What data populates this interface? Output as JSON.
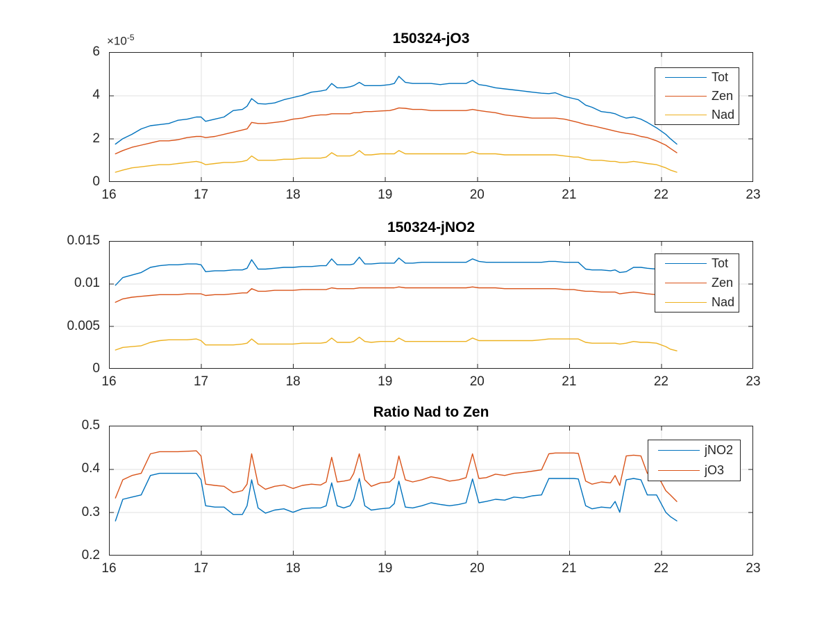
{
  "figure": {
    "background_color": "#ffffff",
    "axis_color": "#262626",
    "grid_color": "#e0e0e0",
    "tick_label_color": "#262626",
    "title_color": "#000000"
  },
  "chart_data": [
    {
      "id": "jo3",
      "type": "line",
      "title": "150324-jO3",
      "grid": true,
      "legend_location": "northeast",
      "y_offset": {
        "base": "×10",
        "exp": "-5"
      },
      "y_unit_note": "y values are in units of 1e-5 (axis offset label ×10^-5)",
      "xlim": [
        16,
        23
      ],
      "ylim": [
        0,
        6
      ],
      "x_tick_values": [
        16,
        17,
        18,
        19,
        20,
        21,
        22,
        23
      ],
      "x_tick_labels": [
        "16",
        "17",
        "18",
        "19",
        "20",
        "21",
        "22",
        "23"
      ],
      "y_tick_values": [
        0,
        2,
        4,
        6
      ],
      "y_tick_labels": [
        "0",
        "2",
        "4",
        "6"
      ],
      "x": [
        16.07,
        16.15,
        16.25,
        16.35,
        16.45,
        16.55,
        16.65,
        16.75,
        16.85,
        16.95,
        17.0,
        17.05,
        17.15,
        17.25,
        17.35,
        17.45,
        17.5,
        17.55,
        17.62,
        17.7,
        17.8,
        17.9,
        18.0,
        18.1,
        18.2,
        18.3,
        18.36,
        18.42,
        18.48,
        18.55,
        18.62,
        18.66,
        18.72,
        18.78,
        18.85,
        18.95,
        19.05,
        19.1,
        19.15,
        19.22,
        19.3,
        19.4,
        19.5,
        19.6,
        19.7,
        19.8,
        19.88,
        19.95,
        20.02,
        20.1,
        20.2,
        20.3,
        20.4,
        20.5,
        20.6,
        20.7,
        20.78,
        20.85,
        20.95,
        21.05,
        21.1,
        21.18,
        21.25,
        21.35,
        21.45,
        21.5,
        21.55,
        21.62,
        21.7,
        21.78,
        21.85,
        21.95,
        22.05,
        22.1,
        22.17
      ],
      "series": [
        {
          "name": "Tot",
          "color": "#0072BD",
          "values": [
            1.75,
            2.0,
            2.2,
            2.45,
            2.6,
            2.65,
            2.7,
            2.85,
            2.9,
            3.0,
            3.0,
            2.8,
            2.9,
            3.0,
            3.3,
            3.35,
            3.5,
            3.85,
            3.62,
            3.6,
            3.65,
            3.8,
            3.9,
            4.0,
            4.15,
            4.2,
            4.25,
            4.55,
            4.35,
            4.35,
            4.4,
            4.45,
            4.6,
            4.45,
            4.45,
            4.45,
            4.5,
            4.55,
            4.88,
            4.6,
            4.55,
            4.55,
            4.55,
            4.5,
            4.55,
            4.55,
            4.55,
            4.7,
            4.5,
            4.45,
            4.35,
            4.3,
            4.25,
            4.2,
            4.15,
            4.1,
            4.08,
            4.12,
            3.95,
            3.85,
            3.8,
            3.55,
            3.45,
            3.25,
            3.2,
            3.15,
            3.05,
            2.95,
            3.0,
            2.9,
            2.75,
            2.5,
            2.2,
            2.0,
            1.75
          ]
        },
        {
          "name": "Zen",
          "color": "#D95319",
          "values": [
            1.3,
            1.45,
            1.6,
            1.7,
            1.8,
            1.9,
            1.9,
            1.95,
            2.05,
            2.1,
            2.1,
            2.05,
            2.1,
            2.2,
            2.3,
            2.4,
            2.45,
            2.75,
            2.7,
            2.7,
            2.75,
            2.8,
            2.9,
            2.95,
            3.05,
            3.1,
            3.1,
            3.15,
            3.15,
            3.15,
            3.15,
            3.2,
            3.2,
            3.25,
            3.25,
            3.28,
            3.3,
            3.35,
            3.42,
            3.4,
            3.35,
            3.35,
            3.3,
            3.3,
            3.3,
            3.3,
            3.3,
            3.35,
            3.3,
            3.25,
            3.2,
            3.1,
            3.05,
            3.0,
            2.95,
            2.95,
            2.95,
            2.95,
            2.9,
            2.8,
            2.75,
            2.65,
            2.6,
            2.5,
            2.4,
            2.35,
            2.3,
            2.25,
            2.2,
            2.1,
            2.05,
            1.9,
            1.7,
            1.55,
            1.35
          ]
        },
        {
          "name": "Nad",
          "color": "#EDB120",
          "values": [
            0.45,
            0.55,
            0.65,
            0.7,
            0.75,
            0.8,
            0.8,
            0.85,
            0.9,
            0.95,
            0.9,
            0.8,
            0.85,
            0.9,
            0.9,
            0.95,
            1.0,
            1.2,
            1.0,
            1.0,
            1.0,
            1.05,
            1.05,
            1.1,
            1.1,
            1.1,
            1.15,
            1.35,
            1.2,
            1.2,
            1.2,
            1.25,
            1.45,
            1.25,
            1.25,
            1.3,
            1.3,
            1.3,
            1.45,
            1.3,
            1.3,
            1.3,
            1.3,
            1.3,
            1.3,
            1.3,
            1.3,
            1.4,
            1.3,
            1.3,
            1.3,
            1.25,
            1.25,
            1.25,
            1.25,
            1.25,
            1.25,
            1.25,
            1.2,
            1.15,
            1.15,
            1.05,
            1.0,
            1.0,
            0.95,
            0.95,
            0.9,
            0.9,
            0.95,
            0.9,
            0.85,
            0.8,
            0.65,
            0.55,
            0.45
          ]
        }
      ]
    },
    {
      "id": "jno2",
      "type": "line",
      "title": "150324-jNO2",
      "grid": true,
      "legend_location": "northeast",
      "xlim": [
        16,
        23
      ],
      "ylim": [
        0,
        0.015
      ],
      "x_tick_values": [
        16,
        17,
        18,
        19,
        20,
        21,
        22,
        23
      ],
      "x_tick_labels": [
        "16",
        "17",
        "18",
        "19",
        "20",
        "21",
        "22",
        "23"
      ],
      "y_tick_values": [
        0,
        0.005,
        0.01,
        0.015
      ],
      "y_tick_labels": [
        "0",
        "0.005",
        "0.01",
        "0.015"
      ],
      "x": [
        16.07,
        16.15,
        16.25,
        16.35,
        16.45,
        16.55,
        16.65,
        16.75,
        16.85,
        16.95,
        17.0,
        17.05,
        17.15,
        17.25,
        17.35,
        17.45,
        17.5,
        17.55,
        17.62,
        17.7,
        17.8,
        17.9,
        18.0,
        18.1,
        18.2,
        18.3,
        18.36,
        18.42,
        18.48,
        18.55,
        18.62,
        18.66,
        18.72,
        18.78,
        18.85,
        18.95,
        19.05,
        19.1,
        19.15,
        19.22,
        19.3,
        19.4,
        19.5,
        19.6,
        19.7,
        19.8,
        19.88,
        19.95,
        20.02,
        20.1,
        20.2,
        20.3,
        20.4,
        20.5,
        20.6,
        20.7,
        20.78,
        20.85,
        20.95,
        21.05,
        21.1,
        21.18,
        21.25,
        21.35,
        21.45,
        21.5,
        21.55,
        21.62,
        21.7,
        21.78,
        21.85,
        21.95,
        22.05,
        22.1,
        22.17
      ],
      "series": [
        {
          "name": "Tot",
          "color": "#0072BD",
          "values": [
            0.0098,
            0.0107,
            0.011,
            0.0113,
            0.0119,
            0.0121,
            0.0122,
            0.0122,
            0.0123,
            0.0123,
            0.0122,
            0.0114,
            0.0115,
            0.0115,
            0.0116,
            0.0116,
            0.0118,
            0.0128,
            0.0117,
            0.0117,
            0.0118,
            0.0119,
            0.0119,
            0.012,
            0.012,
            0.0121,
            0.0121,
            0.0129,
            0.0122,
            0.0122,
            0.0122,
            0.0123,
            0.0131,
            0.0123,
            0.0123,
            0.0124,
            0.0124,
            0.0124,
            0.013,
            0.0124,
            0.0124,
            0.0125,
            0.0125,
            0.0125,
            0.0125,
            0.0125,
            0.0125,
            0.0129,
            0.0126,
            0.0125,
            0.0125,
            0.0125,
            0.0125,
            0.0125,
            0.0125,
            0.0125,
            0.0126,
            0.0126,
            0.0125,
            0.0125,
            0.0125,
            0.0117,
            0.0116,
            0.0116,
            0.0115,
            0.0116,
            0.0113,
            0.0114,
            0.0119,
            0.0119,
            0.0118,
            0.0117,
            0.0114,
            0.0113,
            0.0112
          ]
        },
        {
          "name": "Zen",
          "color": "#D95319",
          "values": [
            0.0078,
            0.0082,
            0.0084,
            0.0085,
            0.0086,
            0.0087,
            0.0087,
            0.0087,
            0.0088,
            0.0088,
            0.0088,
            0.0086,
            0.0087,
            0.0087,
            0.0088,
            0.0089,
            0.0089,
            0.0094,
            0.0091,
            0.0091,
            0.0092,
            0.0092,
            0.0092,
            0.0093,
            0.0093,
            0.0093,
            0.0093,
            0.0095,
            0.0094,
            0.0094,
            0.0094,
            0.0094,
            0.0095,
            0.0095,
            0.0095,
            0.0095,
            0.0095,
            0.0095,
            0.0096,
            0.0095,
            0.0095,
            0.0095,
            0.0095,
            0.0095,
            0.0095,
            0.0095,
            0.0095,
            0.0096,
            0.0095,
            0.0095,
            0.0095,
            0.0094,
            0.0094,
            0.0094,
            0.0094,
            0.0094,
            0.0094,
            0.0094,
            0.0093,
            0.0093,
            0.0092,
            0.0091,
            0.0091,
            0.009,
            0.009,
            0.009,
            0.0088,
            0.0089,
            0.009,
            0.0089,
            0.0088,
            0.0087,
            0.0086,
            0.0085,
            0.0084
          ]
        },
        {
          "name": "Nad",
          "color": "#EDB120",
          "values": [
            0.0022,
            0.0025,
            0.0026,
            0.0027,
            0.0031,
            0.0033,
            0.0034,
            0.0034,
            0.0034,
            0.0035,
            0.0033,
            0.0028,
            0.0028,
            0.0028,
            0.0028,
            0.0029,
            0.003,
            0.0035,
            0.0029,
            0.0029,
            0.0029,
            0.0029,
            0.0029,
            0.003,
            0.003,
            0.003,
            0.0031,
            0.0036,
            0.0031,
            0.0031,
            0.0031,
            0.0032,
            0.0037,
            0.0032,
            0.0031,
            0.0032,
            0.0032,
            0.0032,
            0.0036,
            0.0032,
            0.0032,
            0.0032,
            0.0032,
            0.0032,
            0.0032,
            0.0032,
            0.0032,
            0.0036,
            0.0033,
            0.0033,
            0.0033,
            0.0033,
            0.0033,
            0.0033,
            0.0033,
            0.0034,
            0.0035,
            0.0035,
            0.0035,
            0.0035,
            0.0035,
            0.0031,
            0.003,
            0.003,
            0.003,
            0.003,
            0.0029,
            0.003,
            0.0032,
            0.0031,
            0.0031,
            0.003,
            0.0026,
            0.0023,
            0.0021
          ]
        }
      ]
    },
    {
      "id": "ratio",
      "type": "line",
      "title": "Ratio Nad to Zen",
      "grid": true,
      "legend_location": "northeast",
      "xlim": [
        16,
        23
      ],
      "ylim": [
        0.2,
        0.5
      ],
      "x_tick_values": [
        16,
        17,
        18,
        19,
        20,
        21,
        22,
        23
      ],
      "x_tick_labels": [
        "16",
        "17",
        "18",
        "19",
        "20",
        "21",
        "22",
        "23"
      ],
      "y_tick_values": [
        0.2,
        0.3,
        0.4,
        0.5
      ],
      "y_tick_labels": [
        "0.2",
        "0.3",
        "0.4",
        "0.5"
      ],
      "x": [
        16.07,
        16.15,
        16.25,
        16.35,
        16.45,
        16.55,
        16.65,
        16.75,
        16.85,
        16.95,
        17.0,
        17.05,
        17.15,
        17.25,
        17.35,
        17.45,
        17.5,
        17.55,
        17.62,
        17.7,
        17.8,
        17.9,
        18.0,
        18.1,
        18.2,
        18.3,
        18.36,
        18.42,
        18.48,
        18.55,
        18.62,
        18.66,
        18.72,
        18.78,
        18.85,
        18.95,
        19.05,
        19.1,
        19.15,
        19.22,
        19.3,
        19.4,
        19.5,
        19.6,
        19.7,
        19.8,
        19.88,
        19.95,
        20.02,
        20.1,
        20.2,
        20.3,
        20.4,
        20.5,
        20.6,
        20.7,
        20.78,
        20.85,
        20.95,
        21.05,
        21.1,
        21.18,
        21.25,
        21.35,
        21.45,
        21.5,
        21.55,
        21.62,
        21.7,
        21.78,
        21.85,
        21.95,
        22.05,
        22.1,
        22.17
      ],
      "series": [
        {
          "name": "jNO2",
          "color": "#0072BD",
          "values": [
            0.28,
            0.33,
            0.335,
            0.34,
            0.385,
            0.39,
            0.39,
            0.39,
            0.39,
            0.39,
            0.375,
            0.315,
            0.312,
            0.312,
            0.295,
            0.295,
            0.315,
            0.375,
            0.31,
            0.298,
            0.305,
            0.308,
            0.3,
            0.308,
            0.31,
            0.31,
            0.315,
            0.368,
            0.315,
            0.31,
            0.315,
            0.33,
            0.378,
            0.315,
            0.305,
            0.308,
            0.31,
            0.32,
            0.372,
            0.312,
            0.31,
            0.315,
            0.322,
            0.318,
            0.315,
            0.318,
            0.322,
            0.377,
            0.322,
            0.325,
            0.33,
            0.328,
            0.335,
            0.333,
            0.338,
            0.34,
            0.378,
            0.378,
            0.378,
            0.378,
            0.377,
            0.315,
            0.308,
            0.312,
            0.31,
            0.325,
            0.3,
            0.375,
            0.378,
            0.375,
            0.34,
            0.34,
            0.3,
            0.29,
            0.28
          ]
        },
        {
          "name": "jO3",
          "color": "#D95319",
          "values": [
            0.333,
            0.375,
            0.385,
            0.39,
            0.435,
            0.44,
            0.44,
            0.44,
            0.441,
            0.442,
            0.43,
            0.365,
            0.362,
            0.36,
            0.345,
            0.35,
            0.365,
            0.435,
            0.365,
            0.353,
            0.36,
            0.363,
            0.355,
            0.362,
            0.365,
            0.363,
            0.37,
            0.427,
            0.37,
            0.372,
            0.375,
            0.39,
            0.435,
            0.375,
            0.36,
            0.368,
            0.37,
            0.38,
            0.43,
            0.375,
            0.37,
            0.375,
            0.382,
            0.378,
            0.372,
            0.375,
            0.38,
            0.435,
            0.378,
            0.38,
            0.388,
            0.385,
            0.39,
            0.392,
            0.395,
            0.398,
            0.435,
            0.437,
            0.437,
            0.437,
            0.436,
            0.372,
            0.365,
            0.37,
            0.368,
            0.385,
            0.362,
            0.43,
            0.432,
            0.43,
            0.39,
            0.39,
            0.35,
            0.34,
            0.325
          ]
        }
      ]
    }
  ]
}
